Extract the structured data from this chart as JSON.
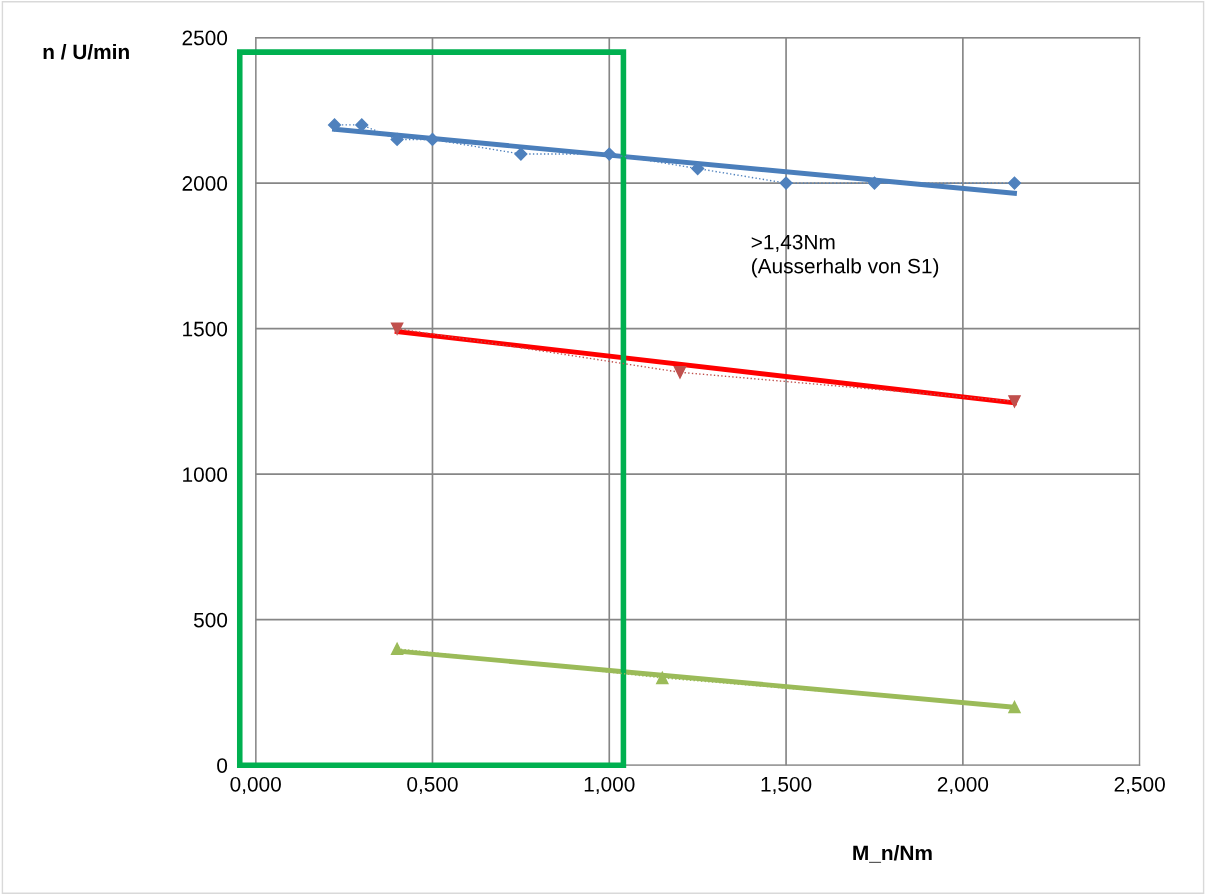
{
  "chart_data": {
    "type": "line",
    "xlabel": "M_n/Nm",
    "ylabel": "n / U/min",
    "xlim": [
      0,
      2.5
    ],
    "ylim": [
      0,
      2500
    ],
    "xticks": [
      {
        "value": 0,
        "label": "0,000"
      },
      {
        "value": 0.5,
        "label": "0,500"
      },
      {
        "value": 1.0,
        "label": "1,000"
      },
      {
        "value": 1.5,
        "label": "1,500"
      },
      {
        "value": 2.0,
        "label": "2,000"
      },
      {
        "value": 2.5,
        "label": "2,500"
      }
    ],
    "yticks": [
      0,
      500,
      1000,
      1500,
      2000,
      2500
    ],
    "grid": true,
    "series": [
      {
        "color": "#4f81bd",
        "marker": "diamond",
        "line_style": "dotted",
        "x": [
          0.223,
          0.3,
          0.4,
          0.5,
          0.75,
          1.0,
          1.25,
          1.5,
          1.75,
          2.146
        ],
        "values": [
          2200,
          2200,
          2150,
          2150,
          2100,
          2100,
          2050,
          2000,
          2000,
          2000
        ]
      },
      {
        "color": "#c0504d",
        "marker": "triangle_down",
        "line_style": "dotted",
        "x": [
          0.4,
          1.2,
          2.146
        ],
        "values": [
          1500,
          1350,
          1250
        ]
      },
      {
        "color": "#9bbb59",
        "marker": "triangle",
        "line_style": "dotted",
        "x": [
          0.4,
          1.15,
          2.146
        ],
        "values": [
          400,
          300,
          200
        ]
      },
      {
        "type": "line",
        "color": "#4a7ebb",
        "marker": "none",
        "line_style": "solid",
        "x": [
          0.223,
          2.146
        ],
        "values": [
          2185,
          1965
        ]
      },
      {
        "type": "line",
        "color": "#ff0000",
        "marker": "none",
        "line_style": "solid",
        "x": [
          0.4,
          2.146
        ],
        "values": [
          1490,
          1245
        ]
      },
      {
        "type": "line",
        "color": "#9bbb59",
        "marker": "none",
        "line_style": "solid",
        "x": [
          0.4,
          2.146
        ],
        "values": [
          392,
          199
        ]
      }
    ],
    "annotations": [
      ">1,43Nm\n(Ausserhalb von S1)"
    ]
  }
}
